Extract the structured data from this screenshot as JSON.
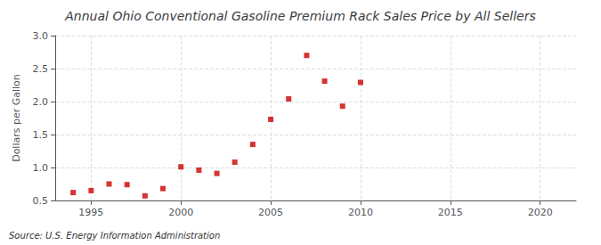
{
  "chart_data": {
    "type": "scatter",
    "title": "Annual Ohio Conventional Gasoline Premium Rack Sales Price by All Sellers",
    "ylabel": "Dollars per Gallon",
    "annotations": [
      "Source: U.S. Energy Information Administration"
    ],
    "x": [
      1994,
      1995,
      1996,
      1997,
      1998,
      1999,
      2000,
      2001,
      2002,
      2003,
      2004,
      2005,
      2006,
      2007,
      2008,
      2009,
      2010
    ],
    "values": [
      0.62,
      0.65,
      0.75,
      0.74,
      0.57,
      0.68,
      1.01,
      0.96,
      0.91,
      1.08,
      1.35,
      1.73,
      2.04,
      2.7,
      2.31,
      1.93,
      2.29
    ],
    "color": "#cc0000",
    "marker": "square",
    "xlim": [
      1993,
      2022
    ],
    "xticks": [
      1995,
      2000,
      2005,
      2010,
      2015,
      2020
    ],
    "ylim": [
      0.5,
      3.0
    ],
    "yticks": [
      0.5,
      {
        "value": 1.0,
        "label": "1.0"
      },
      1.5,
      {
        "value": 2.0,
        "label": "2.0"
      },
      2.5,
      {
        "value": 3.0,
        "label": "3.0"
      }
    ],
    "grid": true
  }
}
